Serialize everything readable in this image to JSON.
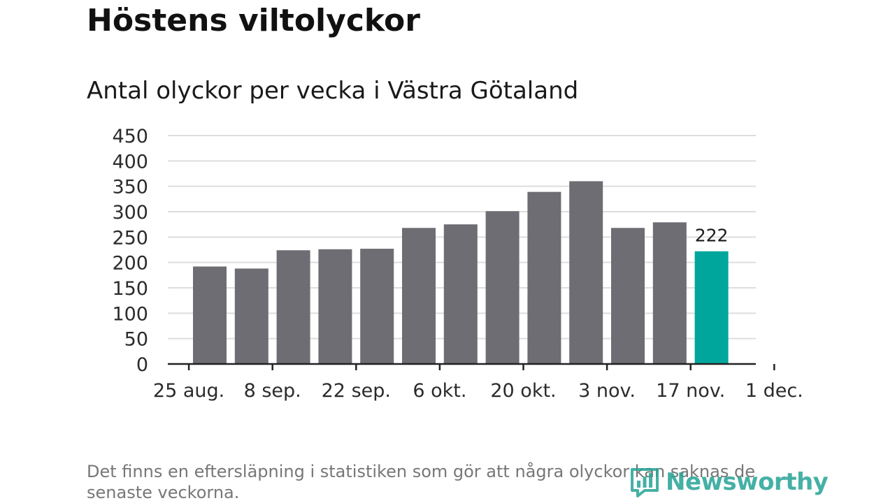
{
  "chart_data": {
    "type": "bar",
    "title": "Höstens viltolyckor",
    "subtitle": "Antal olyckor per vecka i Västra Götaland",
    "x_tick_labels": [
      "25 aug.",
      "8 sep.",
      "22 sep.",
      "6 okt.",
      "20 okt.",
      "3 nov.",
      "17 nov.",
      "1 dec."
    ],
    "y_ticks": [
      0,
      50,
      100,
      150,
      200,
      250,
      300,
      350,
      400,
      450
    ],
    "ylim": [
      0,
      450
    ],
    "grid": true,
    "values": [
      192,
      188,
      224,
      226,
      227,
      268,
      275,
      301,
      339,
      360,
      268,
      279,
      222
    ],
    "highlight_index": 12,
    "highlight_label": "222",
    "colors": {
      "bar": "#6e6d73",
      "highlight": "#00a69c",
      "grid": "#dddddd",
      "axis": "#222222"
    }
  },
  "footnote": "Det finns en eftersläpning i statistiken som gör att några olyckor kan saknas de senaste veckorna.",
  "logo": {
    "text": "Newsworthy",
    "icon": "newsworthy-bar-chart-icon",
    "color": "#25a396"
  }
}
